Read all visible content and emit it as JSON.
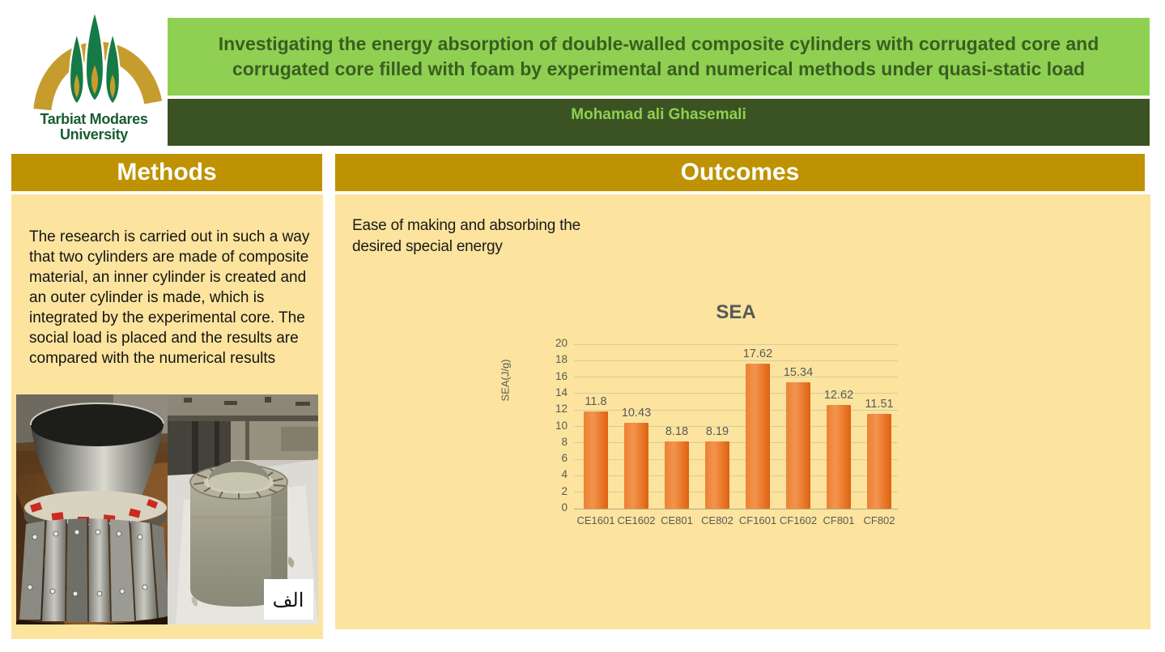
{
  "header": {
    "logo": {
      "icon": "tarbiat-modares-university-logo",
      "line1": "Tarbiat Modares",
      "line2": "University"
    },
    "title": "Investigating the energy absorption of double-walled composite cylinders with corrugated core and corrugated core filled with foam by experimental and numerical methods under quasi-static load",
    "author": "Mohamad ali Ghasemali"
  },
  "methods": {
    "heading": "Methods",
    "body": "The research is carried out in such a way that two cylinders are made of composite material, an inner cylinder is created and an outer cylinder is made, which is integrated by the experimental core. The social load is placed and the results are compared with the numerical results",
    "photos": [
      {
        "name": "steel-mold-cylinder-photo"
      },
      {
        "name": "composite-corrugated-cylinder-photo",
        "label": "الف"
      }
    ]
  },
  "outcomes": {
    "heading": "Outcomes",
    "body": "Ease of making and absorbing the desired special energy"
  },
  "chart_data": {
    "type": "bar",
    "title": "SEA",
    "xlabel": "",
    "ylabel": "SEA(J/g)",
    "categories": [
      "CE1601",
      "CE1602",
      "CE801",
      "CE802",
      "CF1601",
      "CF1602",
      "CF801",
      "CF802"
    ],
    "values": [
      11.8,
      10.43,
      8.18,
      8.19,
      17.62,
      15.34,
      12.62,
      11.51
    ],
    "ylim": [
      0,
      20
    ],
    "ytick_step": 2,
    "grid": true,
    "legend": "none",
    "bar_color": "#ED7D31",
    "text_color": "#595959"
  },
  "colors": {
    "title_banner_bg": "#8FD052",
    "title_text": "#3A5E21",
    "author_strip_bg": "#3B5322",
    "author_text": "#8ED050",
    "section_header_bg": "#BE9202",
    "section_header_text": "#FFFFFF",
    "panel_bg": "#FCE49E",
    "chart_bar": "#ED7D31",
    "chart_text": "#595959",
    "logo_green": "#157A45",
    "logo_gold": "#C79C2E"
  }
}
